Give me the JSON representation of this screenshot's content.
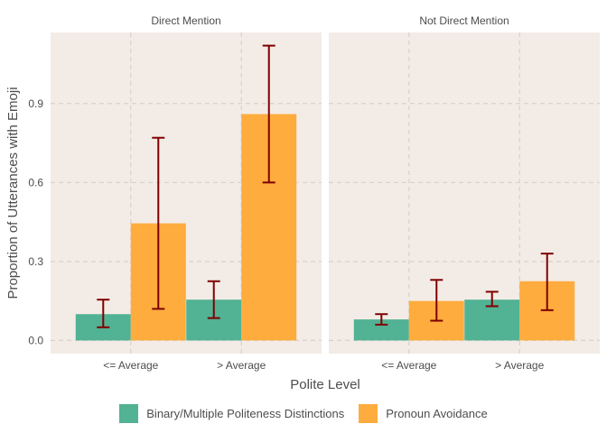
{
  "chart_data": {
    "type": "bar",
    "xlabel": "Polite Level",
    "ylabel": "Proportion of Utterances with Emoji",
    "categories": [
      "<= Average",
      "> Average"
    ],
    "ylim": [
      -0.05,
      1.17
    ],
    "yticks": [
      0.0,
      0.3,
      0.6,
      0.9
    ],
    "ytick_labels": [
      "0.0",
      "0.3",
      "0.6",
      "0.9"
    ],
    "grid": true,
    "legend_position": "bottom",
    "series_colors": [
      "#52b294",
      "#feac3e"
    ],
    "errorbar_color": "#7f0000",
    "panel_background": "#f3ece6",
    "panels": [
      {
        "title": "Direct Mention",
        "series": [
          {
            "name": "Binary/Multiple Politeness Distinctions",
            "values": [
              0.1,
              0.155
            ],
            "err_low": [
              0.05,
              0.085
            ],
            "err_high": [
              0.155,
              0.225
            ]
          },
          {
            "name": "Pronoun Avoidance",
            "values": [
              0.445,
              0.86
            ],
            "err_low": [
              0.12,
              0.6
            ],
            "err_high": [
              0.77,
              1.12
            ]
          }
        ]
      },
      {
        "title": "Not Direct Mention",
        "series": [
          {
            "name": "Binary/Multiple Politeness Distinctions",
            "values": [
              0.08,
              0.155
            ],
            "err_low": [
              0.06,
              0.13
            ],
            "err_high": [
              0.1,
              0.185
            ]
          },
          {
            "name": "Pronoun Avoidance",
            "values": [
              0.15,
              0.225
            ],
            "err_low": [
              0.075,
              0.115
            ],
            "err_high": [
              0.23,
              0.33
            ]
          }
        ]
      }
    ],
    "legend": [
      {
        "label": "Binary/Multiple Politeness Distinctions",
        "color": "#52b294"
      },
      {
        "label": "Pronoun Avoidance",
        "color": "#feac3e"
      }
    ]
  }
}
